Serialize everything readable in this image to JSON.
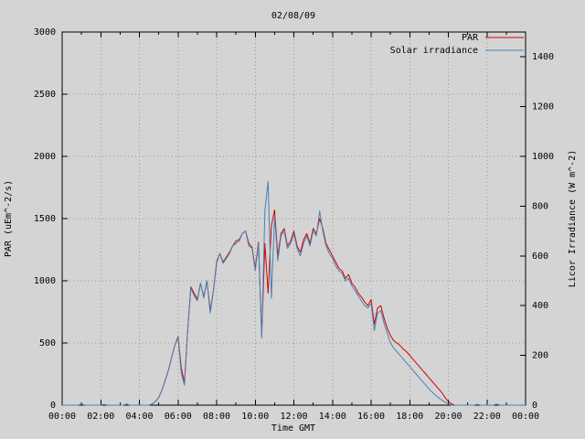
{
  "colors": {
    "background": "#d4d4d4",
    "text": "#000000",
    "grid": "#999999",
    "par_line": "#d40000",
    "solar_line": "#4682b4"
  },
  "chart_data": {
    "type": "line",
    "title": "02/08/09",
    "xlabel": "Time GMT",
    "ylabel_left": "PAR (uEm^-2/s)",
    "ylabel_right": "Licor Irradiance (W m^-2)",
    "grid": "dotted",
    "legend_position": "top-right-inside",
    "x_range_minutes": [
      0,
      1440
    ],
    "x_step_minutes": 10,
    "x_tick_minutes": [
      0,
      120,
      240,
      360,
      480,
      600,
      720,
      840,
      960,
      1080,
      1200,
      1320,
      1440
    ],
    "x_tick_labels": [
      "00:00",
      "02:00",
      "04:00",
      "06:00",
      "08:00",
      "10:00",
      "12:00",
      "14:00",
      "16:00",
      "18:00",
      "20:00",
      "22:00",
      "00:00"
    ],
    "y_left_axis": {
      "range": [
        0,
        3000
      ],
      "tick_step": 500,
      "tick_labels": [
        "0",
        "500",
        "1000",
        "1500",
        "2000",
        "2500",
        "3000"
      ]
    },
    "y_right_axis": {
      "range": [
        0,
        1500
      ],
      "tick_step": 200,
      "max_labeled_tick": 1400,
      "tick_labels": [
        "0",
        "200",
        "400",
        "600",
        "800",
        "1000",
        "1200",
        "1400"
      ]
    },
    "series": [
      {
        "name": "PAR",
        "axis": "left",
        "color": "#d40000",
        "values": [
          0,
          0,
          0,
          0,
          0,
          0,
          8,
          0,
          0,
          0,
          0,
          0,
          0,
          6,
          0,
          0,
          0,
          0,
          0,
          0,
          8,
          0,
          0,
          0,
          0,
          0,
          0,
          0,
          10,
          30,
          60,
          120,
          200,
          280,
          380,
          480,
          550,
          300,
          180,
          600,
          950,
          900,
          850,
          980,
          870,
          1000,
          760,
          920,
          1150,
          1220,
          1150,
          1190,
          1230,
          1280,
          1320,
          1330,
          1380,
          1400,
          1300,
          1270,
          1100,
          1310,
          560,
          1300,
          900,
          1440,
          1570,
          1200,
          1380,
          1420,
          1280,
          1320,
          1400,
          1280,
          1230,
          1330,
          1380,
          1300,
          1420,
          1380,
          1500,
          1420,
          1300,
          1250,
          1200,
          1150,
          1100,
          1080,
          1020,
          1050,
          980,
          950,
          900,
          870,
          830,
          800,
          850,
          650,
          780,
          800,
          700,
          620,
          560,
          520,
          500,
          480,
          450,
          430,
          400,
          370,
          340,
          310,
          280,
          250,
          220,
          190,
          160,
          130,
          100,
          60,
          30,
          10,
          0,
          0,
          0,
          0,
          0,
          0,
          0,
          6,
          0,
          0,
          0,
          0,
          0,
          8,
          0,
          0,
          0,
          0,
          0,
          0,
          0,
          0,
          0
        ]
      },
      {
        "name": "Solar irradiance",
        "axis": "right",
        "color": "#4682b4",
        "values": [
          0,
          0,
          0,
          0,
          0,
          0,
          4,
          0,
          0,
          0,
          0,
          0,
          0,
          3,
          0,
          0,
          0,
          0,
          0,
          0,
          4,
          0,
          0,
          0,
          0,
          0,
          0,
          0,
          5,
          15,
          30,
          60,
          100,
          140,
          190,
          240,
          270,
          130,
          80,
          300,
          470,
          440,
          420,
          490,
          430,
          500,
          370,
          460,
          570,
          610,
          570,
          590,
          610,
          640,
          650,
          660,
          690,
          700,
          640,
          630,
          540,
          650,
          270,
          780,
          900,
          430,
          760,
          580,
          680,
          700,
          630,
          650,
          690,
          630,
          600,
          650,
          680,
          640,
          700,
          680,
          780,
          700,
          640,
          610,
          590,
          560,
          540,
          530,
          500,
          510,
          480,
          460,
          440,
          420,
          400,
          390,
          410,
          300,
          370,
          380,
          330,
          290,
          250,
          230,
          215,
          200,
          185,
          170,
          155,
          140,
          125,
          110,
          95,
          80,
          65,
          52,
          40,
          30,
          20,
          12,
          5,
          0,
          0,
          0,
          0,
          0,
          0,
          0,
          0,
          3,
          0,
          0,
          0,
          0,
          0,
          4,
          0,
          0,
          0,
          0,
          0,
          0,
          0,
          0,
          0
        ]
      }
    ]
  }
}
